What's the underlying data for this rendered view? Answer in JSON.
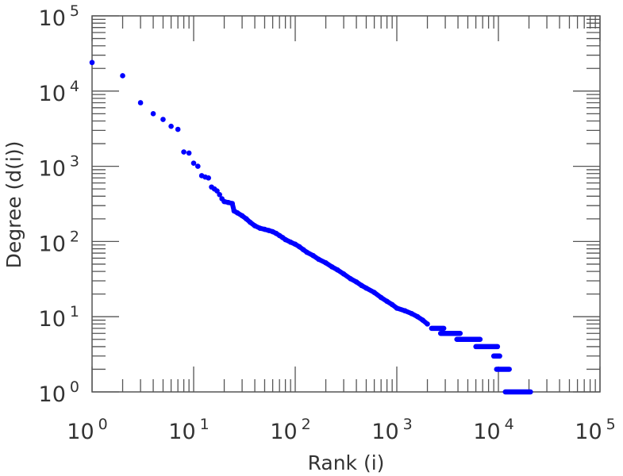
{
  "chart_data": {
    "type": "scatter",
    "title": "",
    "xlabel": "Rank (i)",
    "ylabel": "Degree (d(i))",
    "xscale": "log",
    "yscale": "log",
    "xlim": [
      1,
      100000
    ],
    "ylim": [
      1,
      100000
    ],
    "x_ticks": [
      {
        "base": "10",
        "exp": "0"
      },
      {
        "base": "10",
        "exp": "1"
      },
      {
        "base": "10",
        "exp": "2"
      },
      {
        "base": "10",
        "exp": "3"
      },
      {
        "base": "10",
        "exp": "4"
      },
      {
        "base": "10",
        "exp": "5"
      }
    ],
    "y_ticks": [
      {
        "base": "10",
        "exp": "0"
      },
      {
        "base": "10",
        "exp": "1"
      },
      {
        "base": "10",
        "exp": "2"
      },
      {
        "base": "10",
        "exp": "3"
      },
      {
        "base": "10",
        "exp": "4"
      },
      {
        "base": "10",
        "exp": "5"
      }
    ],
    "marker_color": "#0000ff",
    "points": [
      [
        1,
        24000
      ],
      [
        2,
        16000
      ],
      [
        3,
        7000
      ],
      [
        4,
        5000
      ],
      [
        5,
        4200
      ],
      [
        6,
        3400
      ],
      [
        7,
        3100
      ],
      [
        8,
        1550
      ],
      [
        9,
        1500
      ],
      [
        10,
        1100
      ],
      [
        11,
        1000
      ],
      [
        12,
        750
      ],
      [
        13,
        720
      ],
      [
        14,
        700
      ],
      [
        15,
        530
      ],
      [
        16,
        500
      ],
      [
        17,
        470
      ],
      [
        18,
        420
      ],
      [
        19,
        370
      ],
      [
        20,
        340
      ],
      [
        22,
        330
      ],
      [
        24,
        320
      ],
      [
        25,
        255
      ],
      [
        27,
        240
      ],
      [
        30,
        220
      ],
      [
        33,
        200
      ],
      [
        36,
        180
      ],
      [
        40,
        162
      ],
      [
        45,
        150
      ],
      [
        50,
        145
      ],
      [
        55,
        140
      ],
      [
        60,
        135
      ],
      [
        65,
        128
      ],
      [
        70,
        120
      ],
      [
        75,
        113
      ],
      [
        80,
        106
      ],
      [
        90,
        98
      ],
      [
        100,
        92
      ],
      [
        110,
        85
      ],
      [
        120,
        78
      ],
      [
        130,
        72
      ],
      [
        150,
        65
      ],
      [
        170,
        58
      ],
      [
        200,
        52
      ],
      [
        230,
        46
      ],
      [
        260,
        42
      ],
      [
        300,
        37
      ],
      [
        350,
        32
      ],
      [
        400,
        29
      ],
      [
        450,
        26
      ],
      [
        500,
        24
      ],
      [
        600,
        21
      ],
      [
        700,
        18
      ],
      [
        800,
        16
      ],
      [
        900,
        14.5
      ],
      [
        1000,
        13
      ],
      [
        1200,
        12
      ],
      [
        1400,
        11
      ],
      [
        1600,
        10
      ],
      [
        1800,
        9
      ],
      [
        2000,
        8
      ]
    ],
    "steps": [
      {
        "degree": 7,
        "rank_from": 2200,
        "rank_to": 2900
      },
      {
        "degree": 6,
        "rank_from": 2700,
        "rank_to": 4200
      },
      {
        "degree": 5,
        "rank_from": 3900,
        "rank_to": 6600
      },
      {
        "degree": 4,
        "rank_from": 6000,
        "rank_to": 9800
      },
      {
        "degree": 3,
        "rank_from": 9000,
        "rank_to": 10300
      },
      {
        "degree": 2,
        "rank_from": 9600,
        "rank_to": 12800
      },
      {
        "degree": 1,
        "rank_from": 11700,
        "rank_to": 20700
      }
    ]
  }
}
